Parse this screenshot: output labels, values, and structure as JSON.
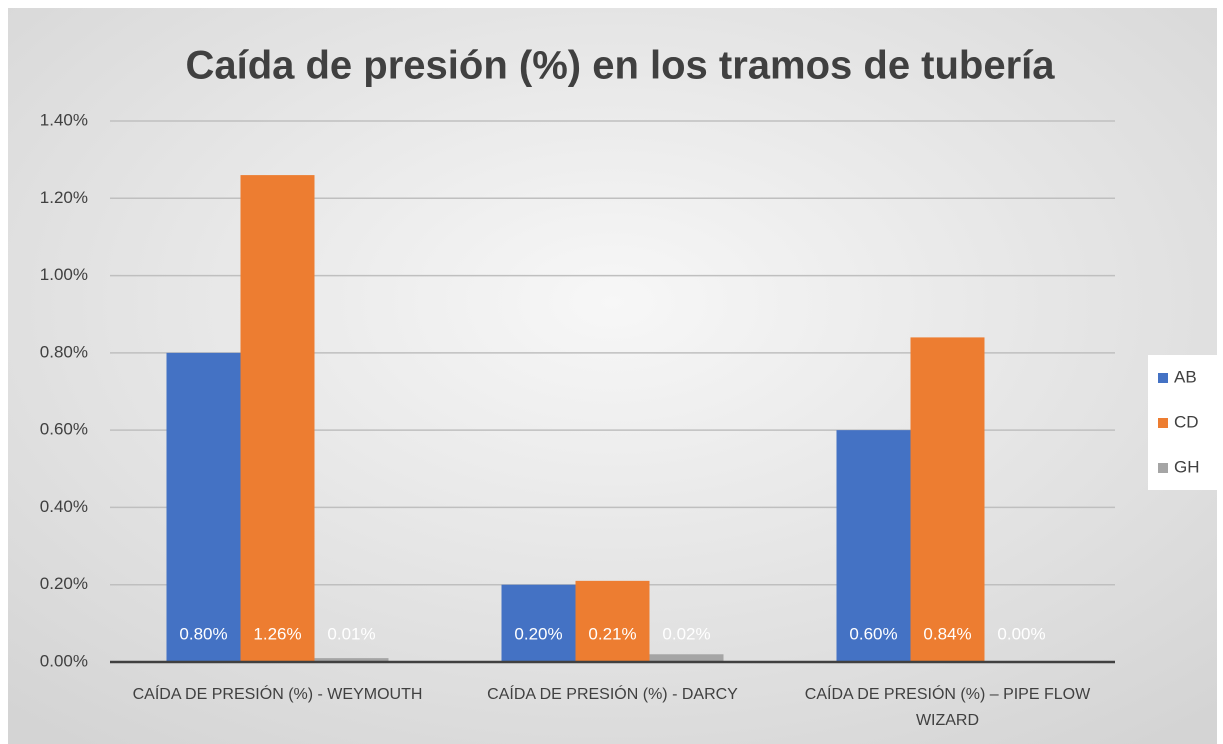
{
  "chart_data": {
    "type": "bar",
    "title": "Caída de presión (%) en los tramos de tubería",
    "categories": [
      "CAÍDA DE PRESIÓN (%) - WEYMOUTH",
      "CAÍDA DE PRESIÓN (%) - DARCY",
      "CAÍDA DE PRESIÓN (%) – PIPE FLOW WIZARD"
    ],
    "series": [
      {
        "name": "AB",
        "color": "#4472c4",
        "values": [
          0.8,
          0.2,
          0.6
        ],
        "value_labels": [
          "0.80%",
          "0.20%",
          "0.60%"
        ]
      },
      {
        "name": "CD",
        "color": "#ed7d31",
        "values": [
          1.26,
          0.21,
          0.84
        ],
        "value_labels": [
          "1.26%",
          "0.21%",
          "0.84%"
        ]
      },
      {
        "name": "GH",
        "color": "#a5a5a5",
        "values": [
          0.01,
          0.02,
          0.0
        ],
        "value_labels": [
          "0.01%",
          "0.02%",
          "0.00%"
        ]
      }
    ],
    "ylim": [
      0,
      1.4
    ],
    "yticks": [
      {
        "value": 0,
        "label": "0.00%"
      },
      {
        "value": 0.2,
        "label": "0.20%"
      },
      {
        "value": 0.4,
        "label": "0.40%"
      },
      {
        "value": 0.6,
        "label": "0.60%"
      },
      {
        "value": 0.8,
        "label": "0.80%"
      },
      {
        "value": 1.0,
        "label": "1.00%"
      },
      {
        "value": 1.2,
        "label": "1.20%"
      },
      {
        "value": 1.4,
        "label": "1.40%"
      }
    ],
    "grid": true,
    "legend": "right"
  }
}
